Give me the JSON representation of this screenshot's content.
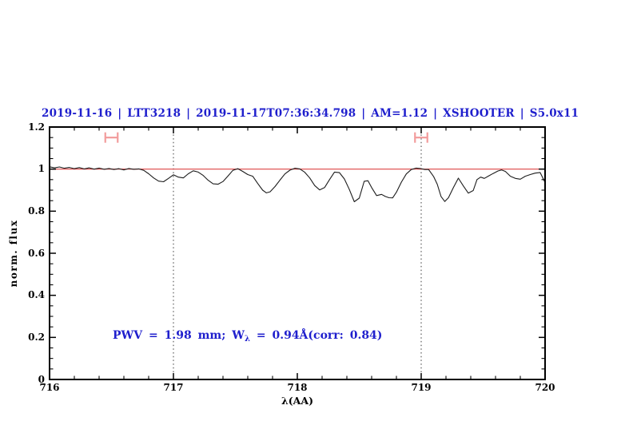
{
  "colors": {
    "title_blue": "#1f1fcd",
    "annotation_blue": "#1f1fcd",
    "spectrum_black": "#1c1c1c",
    "continuum_red": "#dd4343",
    "marker_red": "#f29c9c",
    "axis_black": "#000000",
    "vline_gray": "#3a3a3a"
  },
  "chart_data": {
    "type": "line",
    "title": "2019-11-16 | LTT3218 | 2019-11-17T07:36:34.798 | AM=1.12 | XSHOOTER | S5.0x11",
    "xlabel": "λ(AA)",
    "ylabel": "norm. flux",
    "xlim": [
      716,
      720
    ],
    "ylim": [
      0,
      1.2
    ],
    "x_ticks": [
      716,
      717,
      718,
      719,
      720
    ],
    "x_tick_labels": [
      "716",
      "717",
      "718",
      "719",
      "720"
    ],
    "y_ticks": [
      0,
      0.2,
      0.4,
      0.6,
      0.8,
      1,
      1.2
    ],
    "y_tick_labels": [
      "0",
      "0.2",
      "0.4",
      "0.6",
      "0.8",
      "1",
      "1.2"
    ],
    "x_minor_step": 0.2,
    "y_minor_step": 0.05,
    "grid": false,
    "legend": "none",
    "vlines": [
      717,
      719
    ],
    "continuum_level": 1.0,
    "range_markers": [
      {
        "x_from": 716.45,
        "x_to": 716.55,
        "y": 1.15
      },
      {
        "x_from": 718.95,
        "x_to": 719.05,
        "y": 1.15
      }
    ],
    "annotation": {
      "text": "PWV = 1.98 mm; Wλ = 0.94Å(corr: 0.84)",
      "prefix": "PWV = 1.98 mm; W",
      "sub": "λ",
      "suffix": " = 0.94Å(corr: 0.84)"
    },
    "series": [
      {
        "name": "normalized telluric spectrum",
        "x": [
          716.0,
          716.04,
          716.08,
          716.12,
          716.16,
          716.2,
          716.24,
          716.28,
          716.32,
          716.36,
          716.4,
          716.44,
          716.48,
          716.52,
          716.56,
          716.6,
          716.64,
          716.68,
          716.72,
          716.76,
          716.8,
          716.84,
          716.88,
          716.92,
          716.96,
          717.0,
          717.04,
          717.08,
          717.12,
          717.16,
          717.2,
          717.24,
          717.28,
          717.32,
          717.36,
          717.4,
          717.44,
          717.48,
          717.52,
          717.56,
          717.6,
          717.64,
          717.68,
          717.72,
          717.75,
          717.78,
          717.82,
          717.86,
          717.9,
          717.94,
          717.98,
          718.02,
          718.06,
          718.1,
          718.14,
          718.18,
          718.22,
          718.26,
          718.3,
          718.34,
          718.38,
          718.42,
          718.46,
          718.5,
          718.54,
          718.57,
          718.6,
          718.64,
          718.68,
          718.71,
          718.74,
          718.77,
          718.8,
          718.84,
          718.88,
          718.92,
          718.96,
          719.0,
          719.03,
          719.06,
          719.1,
          719.13,
          719.16,
          719.19,
          719.22,
          719.26,
          719.3,
          719.34,
          719.38,
          719.42,
          719.45,
          719.48,
          719.51,
          719.54,
          719.58,
          719.62,
          719.65,
          719.68,
          719.72,
          719.76,
          719.8,
          719.84,
          719.88,
          719.92,
          719.96,
          720.0
        ],
        "y": [
          1.011,
          1.006,
          1.01,
          1.004,
          1.008,
          1.002,
          1.007,
          1.001,
          1.006,
          1.0,
          1.005,
          0.999,
          1.003,
          0.998,
          1.002,
          0.996,
          1.003,
          0.999,
          1.001,
          0.994,
          0.978,
          0.958,
          0.943,
          0.94,
          0.956,
          0.973,
          0.962,
          0.958,
          0.978,
          0.992,
          0.986,
          0.97,
          0.947,
          0.93,
          0.928,
          0.941,
          0.967,
          0.994,
          1.002,
          0.989,
          0.974,
          0.966,
          0.932,
          0.9,
          0.887,
          0.892,
          0.917,
          0.948,
          0.977,
          0.995,
          1.004,
          1.001,
          0.985,
          0.958,
          0.922,
          0.901,
          0.912,
          0.95,
          0.986,
          0.983,
          0.953,
          0.903,
          0.845,
          0.862,
          0.942,
          0.945,
          0.912,
          0.874,
          0.88,
          0.87,
          0.864,
          0.863,
          0.89,
          0.938,
          0.977,
          0.998,
          1.005,
          1.002,
          0.998,
          0.998,
          0.965,
          0.928,
          0.87,
          0.846,
          0.864,
          0.912,
          0.957,
          0.92,
          0.886,
          0.898,
          0.95,
          0.962,
          0.956,
          0.966,
          0.979,
          0.991,
          0.996,
          0.989,
          0.966,
          0.956,
          0.952,
          0.966,
          0.974,
          0.981,
          0.984,
          0.936
        ]
      }
    ]
  }
}
